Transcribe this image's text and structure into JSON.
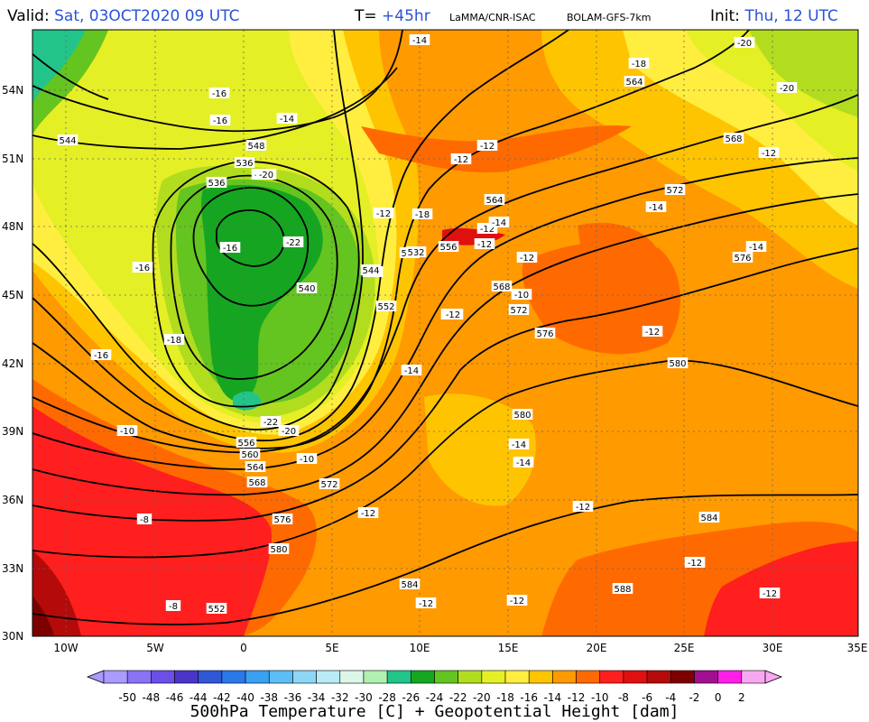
{
  "header": {
    "valid_label": "Valid:",
    "valid_value": "Sat, 03OCT2020  09 UTC",
    "lead_label": "T=",
    "lead_value": "+45hr",
    "source": "LaMMA/CNR-ISAC",
    "model": "BOLAM-GFS-7km",
    "init_label": "Init:",
    "init_value": "Thu, 12 UTC"
  },
  "axes": {
    "lat_labels": [
      "54N",
      "51N",
      "48N",
      "45N",
      "42N",
      "39N",
      "36N",
      "33N",
      "30N"
    ],
    "lon_labels": [
      "10W",
      "5W",
      "0",
      "5E",
      "10E",
      "15E",
      "20E",
      "25E",
      "30E",
      "35E"
    ]
  },
  "colorbar": {
    "labels": [
      "-50",
      "-48",
      "-46",
      "-44",
      "-42",
      "-40",
      "-38",
      "-36",
      "-34",
      "-32",
      "-30",
      "-28",
      "-26",
      "-24",
      "-22",
      "-20",
      "-18",
      "-16",
      "-14",
      "-12",
      "-10",
      "-8",
      "-6",
      "-4",
      "-2",
      "0",
      "2"
    ],
    "colors": [
      "#a99bff",
      "#8a73f5",
      "#6b4fe6",
      "#4a35c8",
      "#2f57d6",
      "#2b79e8",
      "#3aa0f2",
      "#5dbdf5",
      "#8dd6f5",
      "#b8ebf5",
      "#dcf7ea",
      "#b0f0b0",
      "#22c48a",
      "#16a521",
      "#64c420",
      "#b2dd1f",
      "#e5ef26",
      "#ffee40",
      "#ffc400",
      "#ff9a00",
      "#ff6a00",
      "#ff1f1f",
      "#e01010",
      "#b40a0a",
      "#7d0000",
      "#a01090",
      "#ff1fe8",
      "#f8a8f0"
    ],
    "title": "500hPa Temperature [C] + Geopotential Height [dam]"
  },
  "map": {
    "isotherm_labels": [
      "-14",
      "-18",
      "-20",
      "-20",
      "-16",
      "-16",
      "-14",
      "-12",
      "-12",
      "-14",
      "-12",
      "-16",
      "-18",
      "-16",
      "-16",
      "-22",
      "-22",
      "-20",
      "-20",
      "-18",
      "-12",
      "-10",
      "-8",
      "-8",
      "-10",
      "-12",
      "-14",
      "-14",
      "-14",
      "-12",
      "-12",
      "-12",
      "-12",
      "-12",
      "-14",
      "-14",
      "-12",
      "-12",
      "-10",
      "-12",
      "-14",
      "-12",
      "-12",
      "-12"
    ],
    "height_labels": [
      "564",
      "568",
      "572",
      "576",
      "580",
      "584",
      "588",
      "544",
      "548",
      "536",
      "540",
      "548",
      "552",
      "556",
      "560",
      "564",
      "568",
      "572",
      "576",
      "580",
      "552",
      "556",
      "564",
      "568",
      "572",
      "576",
      "580",
      "584",
      "536",
      "544",
      "532",
      "556"
    ]
  }
}
